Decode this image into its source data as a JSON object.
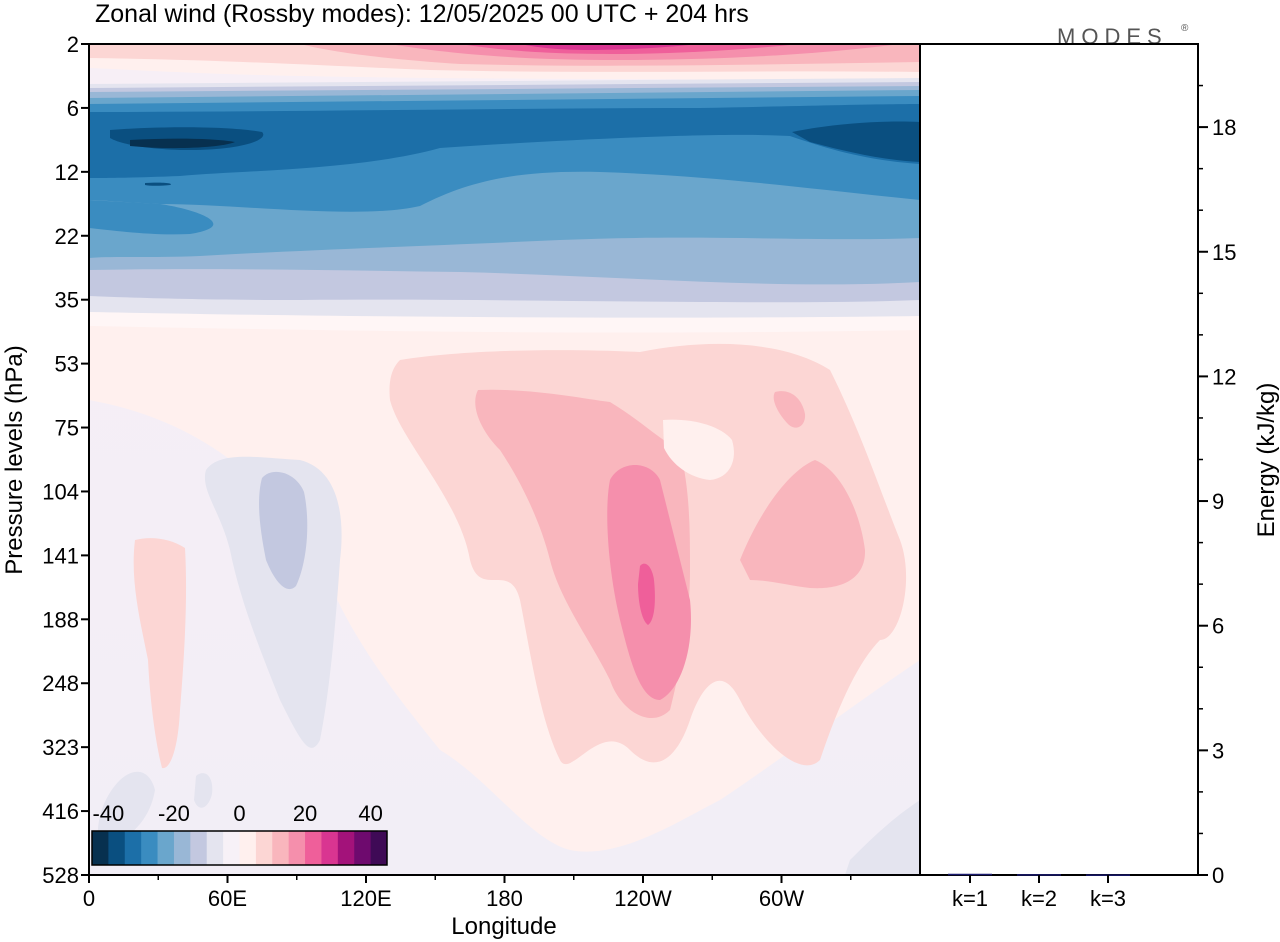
{
  "title": "Zonal wind (Rossby modes):  12/05/2025  00 UTC  + 204 hrs",
  "brand": {
    "name": "MODES",
    "mark": "®"
  },
  "chart_data": [
    {
      "type": "heatmap",
      "variable": "Zonal wind",
      "xlabel": "Longitude",
      "ylabel": "Pressure levels (hPa)",
      "x_ticks": [
        "0",
        "60E",
        "120E",
        "180",
        "120W",
        "60W"
      ],
      "y_ticks": [
        "2",
        "6",
        "12",
        "22",
        "35",
        "53",
        "75",
        "104",
        "141",
        "188",
        "248",
        "323",
        "416",
        "528"
      ],
      "colorbar": {
        "tick_labels": [
          "-40",
          "-20",
          "0",
          "20",
          "40"
        ],
        "colors": [
          "#07304f",
          "#0a4f80",
          "#1c6fa8",
          "#3a8cc0",
          "#6aa6cc",
          "#99b7d6",
          "#c3c8e0",
          "#e4e4ef",
          "#f7f1f7",
          "#fff0ee",
          "#fcd6d4",
          "#f9b6bd",
          "#f58fac",
          "#ef5f9a",
          "#d93591",
          "#a3127a",
          "#6e0a6e",
          "#3f0a56"
        ]
      },
      "field_description_bands": [
        {
          "levels": "2",
          "wind": "positive, up to about 25 near 180-120W"
        },
        {
          "levels": "6-22",
          "wind": "negative, about -25 to -35"
        },
        {
          "levels": "22-35",
          "wind": "weak negative, -5 to -15"
        },
        {
          "levels": "53-416",
          "wind": "positive, up to about 20 near 120W, 141 hPa"
        }
      ]
    },
    {
      "type": "bar",
      "categories": [
        "k=1",
        "k=2",
        "k=3"
      ],
      "values": [
        0.03,
        0.02,
        0.015
      ],
      "ylabel": "Energy (kJ/kg)",
      "y_ticks": [
        "0",
        "3",
        "6",
        "9",
        "12",
        "15",
        "18"
      ],
      "ylim": [
        0,
        20
      ]
    }
  ]
}
